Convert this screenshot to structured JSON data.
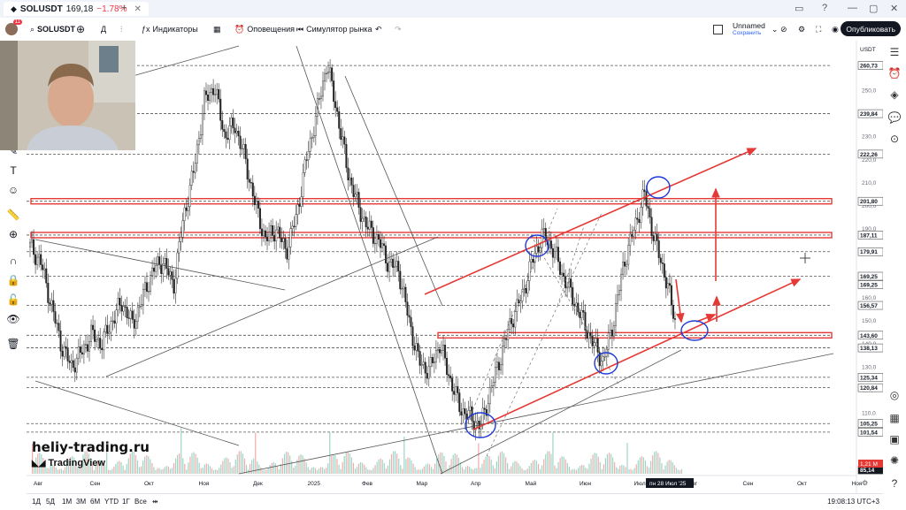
{
  "window": {
    "tab_title": "SOLUSDT",
    "tab_price": "169,18",
    "tab_change": "−1.78%"
  },
  "toolbar": {
    "symbol": "SOLUSDT",
    "interval": "Д",
    "indicators_label": "Индикаторы",
    "alerts_label": "Оповещения",
    "replay_label": "Симулятор рынка",
    "layout_name": "Unnamed",
    "layout_status": "Сохранить",
    "publish_label": "Опубликовать",
    "avatar_badge": "11"
  },
  "bottom": {
    "timeframes": [
      "1Д",
      "5Д",
      "1М",
      "3М",
      "6М",
      "YTD",
      "1Г",
      "Все"
    ],
    "clock": "19:08:13 UTC+3"
  },
  "watermark": {
    "site": "heliy-trading.ru",
    "brand": "TradingView"
  },
  "chart_data": {
    "type": "candlestick",
    "currency": "USDT",
    "x_labels": [
      "Авг",
      "Сен",
      "Окт",
      "Ноя",
      "Дек",
      "2025",
      "Фев",
      "Мар",
      "Апр",
      "Май",
      "Июн",
      "Июл",
      "Авг",
      "Сен",
      "Окт",
      "Ноя"
    ],
    "crosshair_date": "пн 28 Июл '25",
    "ylim": [
      85,
      270
    ],
    "y_ticks": [
      110,
      120,
      130,
      140,
      150,
      160,
      170,
      180,
      190,
      200,
      210,
      220,
      230,
      240,
      250
    ],
    "level_labels": [
      "260,73",
      "239,84",
      "222,26",
      "201,80",
      "187,11",
      "179,91",
      "169,25",
      "156,57",
      "143,60",
      "138,13",
      "125,34",
      "120,84",
      "105,25",
      "101,54",
      "85,14"
    ],
    "current_price": "169,25",
    "volume_label": "1,21 M",
    "key_levels": [
      260.73,
      239.84,
      222.26,
      201.8,
      187.11,
      179.91,
      169.25,
      156.57,
      143.6,
      138.13,
      125.34,
      120.84,
      105.25,
      101.54
    ],
    "price_path": [
      [
        0,
        182
      ],
      [
        1,
        176
      ],
      [
        2,
        158
      ],
      [
        3,
        140
      ],
      [
        4,
        130
      ],
      [
        5,
        136
      ],
      [
        6,
        144
      ],
      [
        7,
        140
      ],
      [
        8,
        150
      ],
      [
        9,
        158
      ],
      [
        10,
        148
      ],
      [
        11,
        160
      ],
      [
        12,
        172
      ],
      [
        13,
        176
      ],
      [
        14,
        165
      ],
      [
        15,
        195
      ],
      [
        16,
        215
      ],
      [
        17,
        245
      ],
      [
        18,
        252
      ],
      [
        19,
        230
      ],
      [
        20,
        235
      ],
      [
        21,
        220
      ],
      [
        22,
        200
      ],
      [
        23,
        185
      ],
      [
        24,
        190
      ],
      [
        25,
        180
      ],
      [
        26,
        195
      ],
      [
        27,
        220
      ],
      [
        28,
        240
      ],
      [
        29,
        262
      ],
      [
        30,
        240
      ],
      [
        31,
        215
      ],
      [
        32,
        200
      ],
      [
        33,
        190
      ],
      [
        34,
        185
      ],
      [
        35,
        175
      ],
      [
        36,
        172
      ],
      [
        37,
        150
      ],
      [
        38,
        132
      ],
      [
        39,
        128
      ],
      [
        40,
        140
      ],
      [
        41,
        125
      ],
      [
        42,
        112
      ],
      [
        43,
        108
      ],
      [
        44,
        104
      ],
      [
        45,
        120
      ],
      [
        46,
        135
      ],
      [
        47,
        150
      ],
      [
        48,
        160
      ],
      [
        49,
        175
      ],
      [
        50,
        187
      ],
      [
        51,
        182
      ],
      [
        52,
        170
      ],
      [
        53,
        160
      ],
      [
        54,
        150
      ],
      [
        55,
        140
      ],
      [
        56,
        132
      ],
      [
        57,
        150
      ],
      [
        58,
        175
      ],
      [
        59,
        190
      ],
      [
        60,
        205
      ],
      [
        61,
        185
      ],
      [
        62,
        170
      ],
      [
        63,
        150
      ]
    ],
    "highlighted_zones": [
      201.8,
      187.11,
      143.6
    ]
  }
}
